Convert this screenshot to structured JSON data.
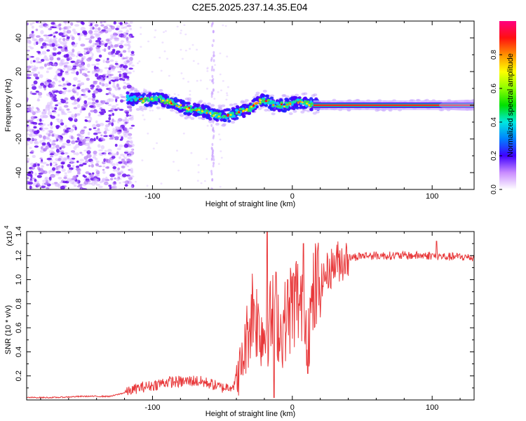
{
  "title": "C2E5.2025.237.14.35.E04",
  "chart_data": [
    {
      "type": "heatmap",
      "xlabel": "Height of straight line (km)",
      "ylabel": "Frequency (Hz)",
      "xlim": [
        -190,
        130
      ],
      "ylim": [
        -50,
        50
      ],
      "xticks": [
        -100,
        0,
        100
      ],
      "xtick_labels": [
        "-100",
        "0",
        "100"
      ],
      "yticks": [
        -40,
        -20,
        0,
        20,
        40
      ],
      "ytick_labels": [
        "-40",
        "-20",
        "0",
        "20",
        "40"
      ],
      "colorbar": {
        "label": "Normalized spectral amplitude",
        "range": [
          0.0,
          1.0
        ],
        "ticks": [
          0.0,
          0.2,
          0.4,
          0.6,
          0.8
        ],
        "tick_labels": [
          "0.0",
          "0.2",
          "0.4",
          "0.6",
          "0.8"
        ]
      },
      "noise_region_x": [
        -190,
        -118
      ],
      "ridge": {
        "x": [
          -118,
          -105,
          -95,
          -85,
          -75,
          -65,
          -55,
          -45,
          -38,
          -30,
          -25,
          -20,
          -15,
          -10,
          -5,
          0,
          5,
          10,
          20,
          40,
          60,
          80,
          100,
          110,
          120,
          130
        ],
        "y": [
          4,
          3,
          4,
          1,
          -2,
          -3,
          -6,
          -6,
          -4,
          -2,
          2,
          3,
          1,
          0,
          0,
          1,
          2,
          1,
          0,
          0,
          0,
          0,
          0,
          0,
          0,
          0
        ]
      }
    },
    {
      "type": "line",
      "xlabel": "Height of straight line (km)",
      "ylabel": "SNR (10 * v/v)",
      "scale_label": "(x10",
      "scale_exponent": "4",
      "xlim": [
        -190,
        130
      ],
      "ylim": [
        0,
        1.4
      ],
      "xticks": [
        -100,
        0,
        100
      ],
      "xtick_labels": [
        "-100",
        "0",
        "100"
      ],
      "yticks": [
        0.2,
        0.4,
        0.6,
        0.8,
        1.0,
        1.2,
        1.4
      ],
      "ytick_labels": [
        "0.2",
        "0.4",
        "0.6",
        "0.8",
        "1.0",
        "1.2",
        "1.4"
      ],
      "series": [
        {
          "name": "SNR",
          "color": "#e8383a",
          "x": [
            -190,
            -170,
            -150,
            -130,
            -120,
            -110,
            -100,
            -90,
            -80,
            -70,
            -60,
            -50,
            -42,
            -36,
            -32,
            -28,
            -24,
            -20,
            -16,
            -12,
            -8,
            -4,
            0,
            4,
            8,
            12,
            16,
            20,
            24,
            28,
            32,
            40,
            50,
            60,
            70,
            80,
            90,
            100,
            110,
            120,
            130
          ],
          "values": [
            0.02,
            0.02,
            0.03,
            0.03,
            0.06,
            0.1,
            0.12,
            0.15,
            0.15,
            0.16,
            0.14,
            0.1,
            0.12,
            0.3,
            0.55,
            0.8,
            0.6,
            0.55,
            0.65,
            0.75,
            0.55,
            0.7,
            0.8,
            0.85,
            0.65,
            0.6,
            0.9,
            0.95,
            1.05,
            1.1,
            1.15,
            1.18,
            1.2,
            1.2,
            1.2,
            1.2,
            1.2,
            1.2,
            1.19,
            1.19,
            1.18
          ],
          "spikes": [
            {
              "x": -18,
              "value": 1.4
            },
            {
              "x": -13,
              "value": 0.02
            },
            {
              "x": 8,
              "value": 1.3
            },
            {
              "x": 11,
              "value": 0.22
            },
            {
              "x": 103,
              "value": 1.32
            }
          ]
        }
      ]
    }
  ]
}
